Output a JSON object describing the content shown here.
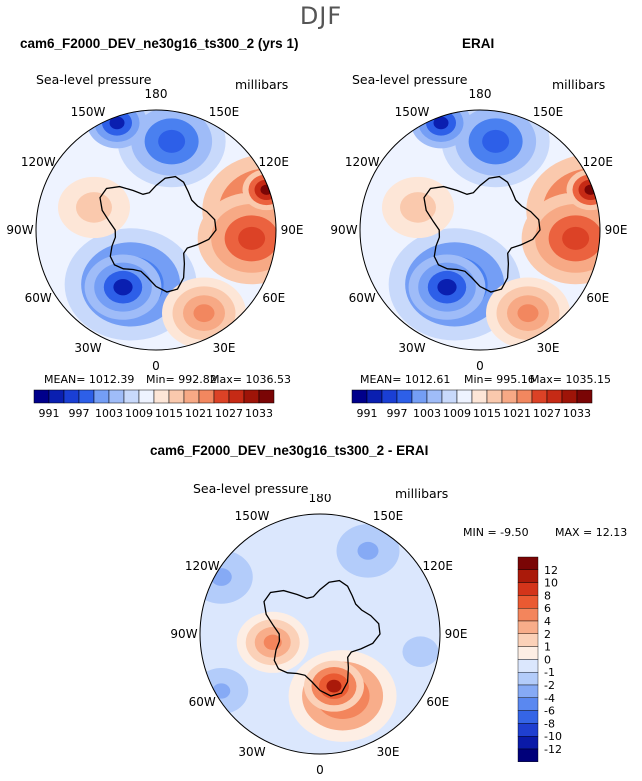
{
  "page_title": "DJF",
  "chart_data": [
    {
      "type": "heatmap",
      "projection": "north-polar-stereographic",
      "title": "cam6_F2000_DEV_ne30g16_ts300_2 (yrs 1)",
      "subtitle_left": "Sea-level pressure",
      "subtitle_right": "millibars",
      "longitude_labels": [
        "180",
        "150E",
        "120E",
        "90E",
        "60E",
        "30E",
        "0",
        "30W",
        "60W",
        "90W",
        "120W",
        "150W"
      ],
      "stats": {
        "mean_label": "MEAN= 1012.39",
        "min_label": "Min= 992.82",
        "max_label": "Max= 1036.53",
        "mean": 1012.39,
        "min": 992.82,
        "max": 1036.53
      },
      "colorbar": {
        "orientation": "horizontal",
        "tick_labels": [
          "991",
          "997",
          "1003",
          "1009",
          "1015",
          "1021",
          "1027",
          "1033"
        ],
        "levels": [
          988,
          991,
          994,
          997,
          1000,
          1003,
          1006,
          1009,
          1012,
          1015,
          1018,
          1021,
          1024,
          1027,
          1030,
          1033,
          1036
        ]
      },
      "field_pattern": "high pressure over Siberia (90E-120E), low over North Atlantic (Iceland) and Aleutians (150W-180)"
    },
    {
      "type": "heatmap",
      "projection": "north-polar-stereographic",
      "title": "ERAI",
      "subtitle_left": "Sea-level pressure",
      "subtitle_right": "millibars",
      "longitude_labels": [
        "180",
        "150E",
        "120E",
        "90E",
        "60E",
        "30E",
        "0",
        "30W",
        "60W",
        "90W",
        "120W",
        "150W"
      ],
      "stats": {
        "mean_label": "MEAN= 1012.61",
        "min_label": "Min= 995.16",
        "max_label": "Max= 1035.15",
        "mean": 1012.61,
        "min": 995.16,
        "max": 1035.15
      },
      "colorbar": {
        "orientation": "horizontal",
        "tick_labels": [
          "991",
          "997",
          "1003",
          "1009",
          "1015",
          "1021",
          "1027",
          "1033"
        ],
        "levels": [
          988,
          991,
          994,
          997,
          1000,
          1003,
          1006,
          1009,
          1012,
          1015,
          1018,
          1021,
          1024,
          1027,
          1030,
          1033,
          1036
        ]
      },
      "field_pattern": "similar to model; Siberian high, Icelandic and Aleutian lows"
    },
    {
      "type": "heatmap",
      "projection": "north-polar-stereographic",
      "title": "cam6_F2000_DEV_ne30g16_ts300_2 - ERAI",
      "subtitle_left": "Sea-level pressure",
      "subtitle_right": "millibars",
      "longitude_labels": [
        "180",
        "150E",
        "120E",
        "90E",
        "60E",
        "30E",
        "0",
        "30W",
        "60W",
        "90W",
        "120W",
        "150W"
      ],
      "stats": {
        "min_label": "MIN = -9.50",
        "max_label": "MAX = 12.13",
        "min": -9.5,
        "max": 12.13
      },
      "colorbar": {
        "orientation": "vertical",
        "tick_labels": [
          "12",
          "10",
          "8",
          "6",
          "4",
          "2",
          "1",
          "0",
          "-1",
          "-2",
          "-4",
          "-6",
          "-8",
          "-10",
          "-12"
        ]
      },
      "field_pattern": "positive difference over Europe/Scandinavia and Canadian archipelago; negative over Siberia and North Pacific"
    }
  ],
  "colors": {
    "slp_scale": [
      "#00008b",
      "#0a1fb0",
      "#1a3fd4",
      "#2d5fe8",
      "#4a80f0",
      "#749ef5",
      "#9fbcf8",
      "#c8d9fb",
      "#eef3ff",
      "#fde6d7",
      "#fac9ad",
      "#f7a985",
      "#f2875f",
      "#eb623f",
      "#dc4226",
      "#c62a15",
      "#9e1408",
      "#7a0505"
    ],
    "diff_scale": [
      "#00007a",
      "#0a1aa8",
      "#1f3fd0",
      "#3565e6",
      "#5a88f0",
      "#86aaf5",
      "#b3ccfa",
      "#dbe7fd",
      "#fdeee4",
      "#fbd1b8",
      "#f8ad8a",
      "#f3855c",
      "#ea5a32",
      "#d3341a",
      "#aa1a0a",
      "#7a0505"
    ]
  }
}
